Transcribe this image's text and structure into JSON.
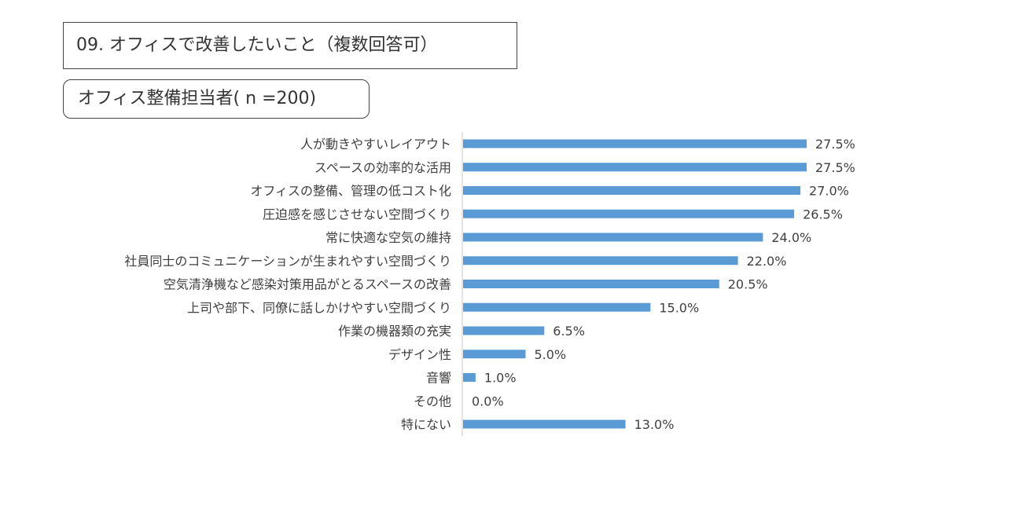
{
  "header": {
    "title": "09. オフィスで改善したいこと（複数回答可）",
    "subtitle": "オフィス整備担当者( n =200)"
  },
  "chart_data": {
    "type": "bar",
    "orientation": "horizontal",
    "title": "09. オフィスで改善したいこと（複数回答可）",
    "subtitle": "オフィス整備担当者( n =200)",
    "unit": "%",
    "xlim": [
      0,
      30
    ],
    "grid": false,
    "bar_color": "#5b9bd5",
    "categories": [
      "人が動きやすいレイアウト",
      "スペースの効率的な活用",
      "オフィスの整備、管理の低コスト化",
      "圧迫感を感じさせない空間づくり",
      "常に快適な空気の維持",
      "社員同士のコミュニケーションが生まれやすい空間づくり",
      "空気清浄機など感染対策用品がとるスペースの改善",
      "上司や部下、同僚に話しかけやすい空間づくり",
      "作業の機器類の充実",
      "デザイン性",
      "音響",
      "その他",
      "特にない"
    ],
    "values": [
      27.5,
      27.5,
      27.0,
      26.5,
      24.0,
      22.0,
      20.5,
      15.0,
      6.5,
      5.0,
      1.0,
      0.0,
      13.0
    ],
    "value_labels": [
      "27.5%",
      "27.5%",
      "27.0%",
      "26.5%",
      "24.0%",
      "22.0%",
      "20.5%",
      "15.0%",
      "6.5%",
      "5.0%",
      "1.0%",
      "0.0%",
      "13.0%"
    ]
  }
}
